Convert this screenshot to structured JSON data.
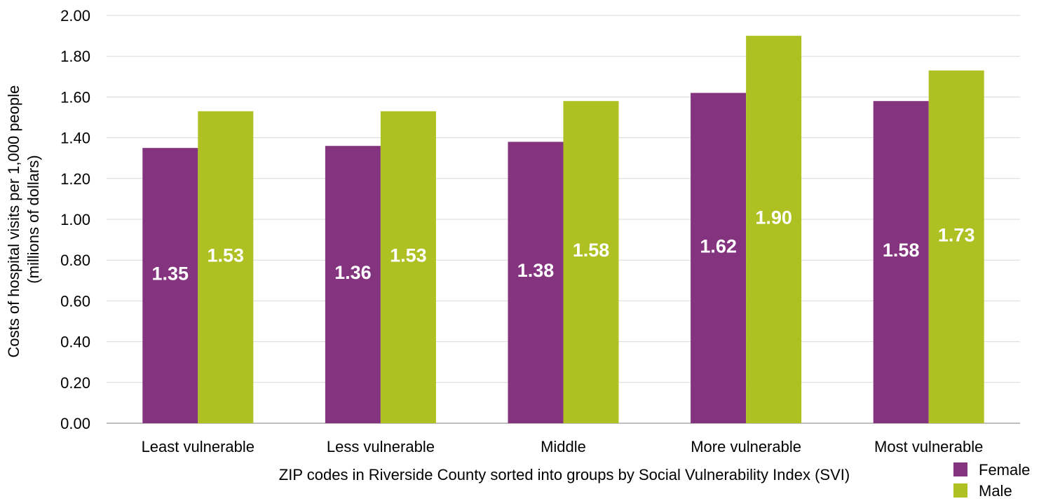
{
  "chart_data": {
    "type": "bar",
    "categories": [
      "Least vulnerable",
      "Less vulnerable",
      "Middle",
      "More vulnerable",
      "Most vulnerable"
    ],
    "series": [
      {
        "name": "Female",
        "color": "#84337E",
        "values": [
          1.35,
          1.36,
          1.38,
          1.62,
          1.58
        ]
      },
      {
        "name": "Male",
        "color": "#AFC122",
        "values": [
          1.53,
          1.53,
          1.58,
          1.9,
          1.73
        ]
      }
    ],
    "title": "",
    "xlabel": "ZIP codes in Riverside County sorted into groups by Social Vulnerability Index (SVI)",
    "ylabel_lines": [
      "Costs of hospital visits per 1,000 people",
      "(millions of dollars)"
    ],
    "ylim": [
      0,
      2
    ],
    "yticks": [
      "0.00",
      "0.20",
      "0.40",
      "0.60",
      "0.80",
      "1.00",
      "1.20",
      "1.40",
      "1.60",
      "1.80",
      "2.00"
    ],
    "data_labels": [
      [
        "1.35",
        "1.36",
        "1.38",
        "1.62",
        "1.58"
      ],
      [
        "1.53",
        "1.53",
        "1.58",
        "1.90",
        "1.73"
      ]
    ],
    "grid": true,
    "legend_position": "bottom-right",
    "colors": {
      "gridline": "#D9D9D9",
      "axis": "#BFBFBF"
    }
  }
}
